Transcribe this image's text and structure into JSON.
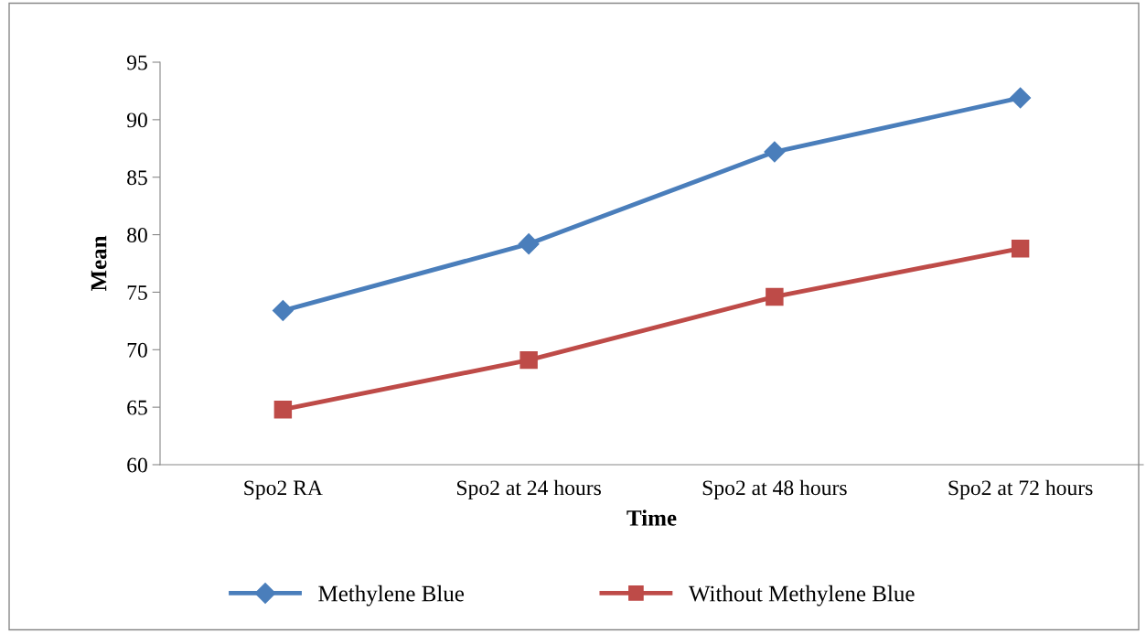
{
  "chart_data": {
    "type": "line",
    "xlabel": "Time",
    "ylabel": "Mean",
    "categories": [
      "Spo2 RA",
      "Spo2 at 24 hours",
      "Spo2 at 48 hours",
      "Spo2 at 72 hours"
    ],
    "series": [
      {
        "name": "Methylene Blue",
        "color": "#4a7ebb",
        "marker": "diamond",
        "values": [
          73.4,
          79.2,
          87.2,
          91.9
        ]
      },
      {
        "name": "Without Methylene Blue",
        "color": "#be4b48",
        "marker": "square",
        "values": [
          64.8,
          69.1,
          74.6,
          78.8
        ]
      }
    ],
    "ylim": [
      60,
      95
    ],
    "yticks": [
      60,
      65,
      70,
      75,
      80,
      85,
      90,
      95
    ],
    "grid": false,
    "legend": "bottom",
    "line_style": "solid"
  }
}
